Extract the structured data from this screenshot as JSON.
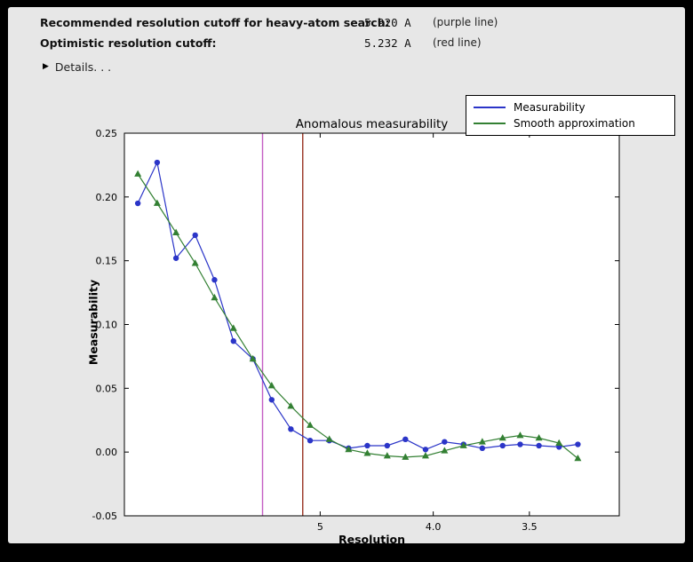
{
  "header": {
    "recommended_label": "Recommended resolution cutoff for heavy-atom search:",
    "recommended_value": "5.920 A",
    "recommended_note": "(purple line)",
    "optimistic_label": "Optimistic resolution cutoff:",
    "optimistic_value": "5.232 A",
    "optimistic_note": "(red line)"
  },
  "details": {
    "label": "Details. . ."
  },
  "chart_data": {
    "type": "line",
    "title": "Anomalous measurability",
    "xlabel": "Resolution",
    "ylabel": "Measurability",
    "x_axis": {
      "scale": "reversed resolution (Angstrom), linear in 1/d^2",
      "range_resolution": [
        31.0,
        3.17
      ],
      "ticks": [
        5,
        4.0,
        3.5
      ],
      "tick_labels": [
        "5",
        "4.0",
        "3.5"
      ]
    },
    "y_axis": {
      "range": [
        -0.05,
        0.25
      ],
      "ticks": [
        0.25,
        0.2,
        0.15,
        0.1,
        0.05,
        0.0,
        -0.05
      ],
      "tick_labels": [
        "0.25",
        "0.20",
        "0.15",
        "0.10",
        "0.05",
        "0.00",
        "-0.05"
      ]
    },
    "resolution_A": [
      16.4,
      11.5,
      9.4,
      8.13,
      7.26,
      6.63,
      6.13,
      5.74,
      5.41,
      5.13,
      4.89,
      4.68,
      4.5,
      4.33,
      4.19,
      4.05,
      3.93,
      3.82,
      3.72,
      3.62,
      3.54,
      3.46,
      3.38,
      3.31
    ],
    "series": [
      {
        "name": "Measurability",
        "color": "#2b35c8",
        "marker": "circle",
        "values": [
          0.195,
          0.227,
          0.152,
          0.17,
          0.135,
          0.087,
          0.073,
          0.041,
          0.018,
          0.009,
          0.009,
          0.003,
          0.005,
          0.005,
          0.01,
          0.002,
          0.008,
          0.006,
          0.003,
          0.005,
          0.006,
          0.005,
          0.004,
          0.006
        ]
      },
      {
        "name": "Smooth approximation",
        "color": "#338033",
        "marker": "triangle",
        "values": [
          0.218,
          0.195,
          0.172,
          0.148,
          0.121,
          0.097,
          0.073,
          0.052,
          0.036,
          0.021,
          0.01,
          0.002,
          -0.001,
          -0.003,
          -0.004,
          -0.003,
          0.001,
          0.005,
          0.008,
          0.011,
          0.013,
          0.011,
          0.007,
          -0.005
        ]
      }
    ],
    "vlines": [
      {
        "label": "purple line",
        "resolution_A": 5.92,
        "color": "#c45ec4"
      },
      {
        "label": "red line",
        "resolution_A": 5.232,
        "color": "#993322"
      }
    ],
    "legend": {
      "position": "upper right",
      "entries": [
        "Measurability",
        "Smooth approximation"
      ]
    },
    "grid": false,
    "plot_background": "#ffffff",
    "figure_background": "#e7e7e7"
  }
}
